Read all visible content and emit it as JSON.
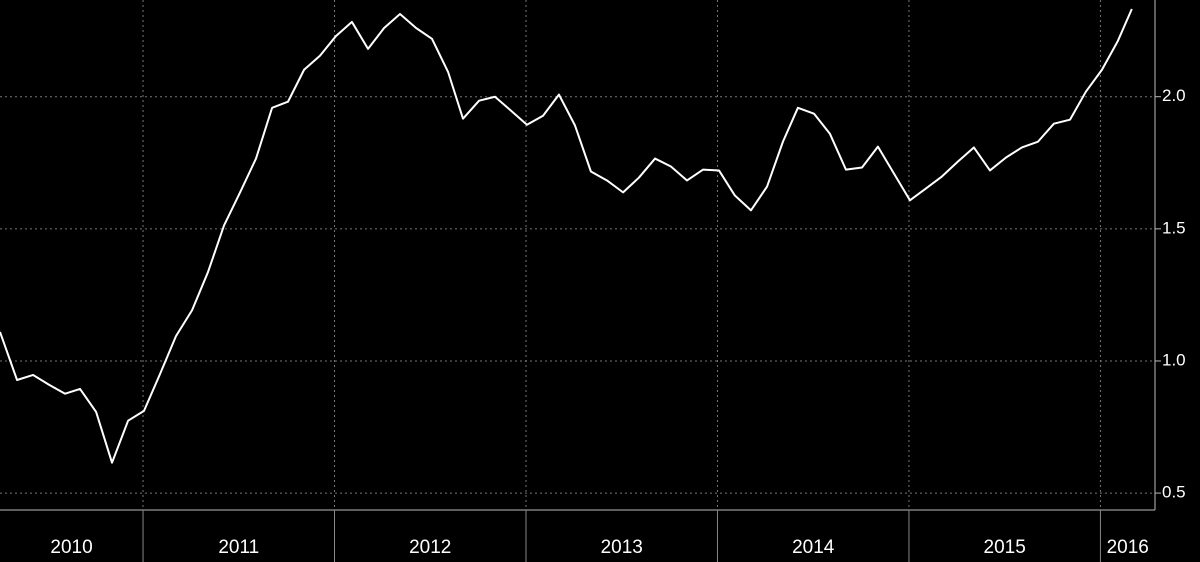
{
  "chart_data": {
    "type": "line",
    "x": [
      2010.253,
      2010.342,
      2010.426,
      2010.509,
      2010.593,
      2010.671,
      2010.755,
      2010.838,
      2010.922,
      2011.005,
      2011.089,
      2011.172,
      2011.256,
      2011.339,
      2011.423,
      2011.507,
      2011.59,
      2011.674,
      2011.757,
      2011.841,
      2011.924,
      2012.008,
      2012.091,
      2012.175,
      2012.259,
      2012.342,
      2012.426,
      2012.509,
      2012.593,
      2012.671,
      2012.755,
      2012.838,
      2012.922,
      2013.005,
      2013.089,
      2013.172,
      2013.256,
      2013.339,
      2013.423,
      2013.507,
      2013.59,
      2013.674,
      2013.757,
      2013.841,
      2013.924,
      2014.008,
      2014.091,
      2014.175,
      2014.259,
      2014.342,
      2014.42,
      2014.504,
      2014.587,
      2014.671,
      2014.755,
      2014.838,
      2014.922,
      2015.005,
      2015.089,
      2015.172,
      2015.256,
      2015.339,
      2015.423,
      2015.507,
      2015.59,
      2015.674,
      2015.757,
      2015.841,
      2015.924,
      2016.008,
      2016.091,
      2016.164
    ],
    "values": [
      1.11,
      0.928,
      0.947,
      0.91,
      0.876,
      0.894,
      0.807,
      0.615,
      0.774,
      0.811,
      0.951,
      1.094,
      1.192,
      1.336,
      1.513,
      1.638,
      1.766,
      1.958,
      1.981,
      2.102,
      2.155,
      2.23,
      2.283,
      2.181,
      2.26,
      2.313,
      2.26,
      2.219,
      2.094,
      1.917,
      1.985,
      2.0,
      1.947,
      1.894,
      1.928,
      2.008,
      1.891,
      1.717,
      1.683,
      1.638,
      1.694,
      1.766,
      1.736,
      1.683,
      1.724,
      1.721,
      1.626,
      1.57,
      1.66,
      1.83,
      1.958,
      1.936,
      1.86,
      1.724,
      1.732,
      1.811,
      1.709,
      1.608,
      1.653,
      1.698,
      1.755,
      1.808,
      1.721,
      1.77,
      1.808,
      1.83,
      1.898,
      1.913,
      2.019,
      2.102,
      2.211,
      2.332
    ],
    "color": "#ffffff",
    "xlim": [
      2010.253,
      2016.285
    ],
    "xticks": [
      2011,
      2012,
      2013,
      2014,
      2015,
      2016
    ],
    "periods": [
      "2010",
      "2011",
      "2012",
      "2013",
      "2014",
      "2015",
      "2016"
    ],
    "ylim": [
      0.436,
      2.366
    ],
    "yticks": [
      {
        "value": 0.5,
        "label": "0.5"
      },
      {
        "value": 1,
        "label": "1.0"
      },
      {
        "value": 1.5,
        "label": "1.5"
      },
      {
        "value": 2,
        "label": "2.0"
      }
    ],
    "grid": true
  }
}
